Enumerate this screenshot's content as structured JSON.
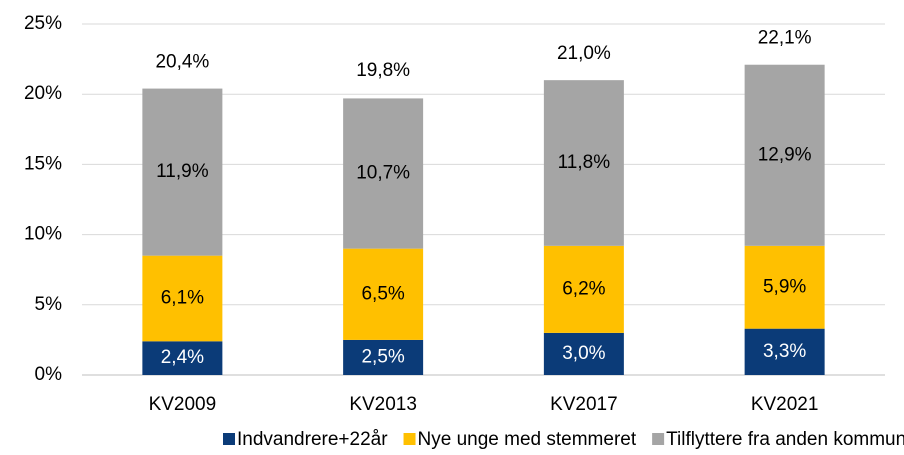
{
  "chart_data": {
    "type": "stacked_bar",
    "categories": [
      "KV2009",
      "KV2013",
      "KV2017",
      "KV2021"
    ],
    "series": [
      {
        "name": "Indvandrere+22år",
        "color": "#0b3b78",
        "values": [
          2.4,
          2.5,
          3.0,
          3.3
        ],
        "value_labels": [
          "2,4%",
          "2,5%",
          "3,0%",
          "3,3%"
        ]
      },
      {
        "name": "Nye unge med stemmeret",
        "color": "#ffc000",
        "values": [
          6.1,
          6.5,
          6.2,
          5.9
        ],
        "value_labels": [
          "6,1%",
          "6,5%",
          "6,2%",
          "5,9%"
        ]
      },
      {
        "name": "Tilflyttere fra anden kommune",
        "color": "#a5a5a5",
        "values": [
          11.9,
          10.7,
          11.8,
          12.9
        ],
        "value_labels": [
          "11,9%",
          "10,7%",
          "11,8%",
          "12,9%"
        ]
      }
    ],
    "totals": {
      "values": [
        20.4,
        19.8,
        21.0,
        22.1
      ],
      "value_labels": [
        "20,4%",
        "19,8%",
        "21,0%",
        "22,1%"
      ]
    },
    "ylim": [
      0,
      25
    ],
    "yticks": [
      {
        "value": 0,
        "label": "0%"
      },
      {
        "value": 5,
        "label": "5%"
      },
      {
        "value": 10,
        "label": "10%"
      },
      {
        "value": 15,
        "label": "15%"
      },
      {
        "value": 20,
        "label": "20%"
      },
      {
        "value": 25,
        "label": "25%"
      }
    ],
    "grid": true,
    "legend": "bottom"
  }
}
